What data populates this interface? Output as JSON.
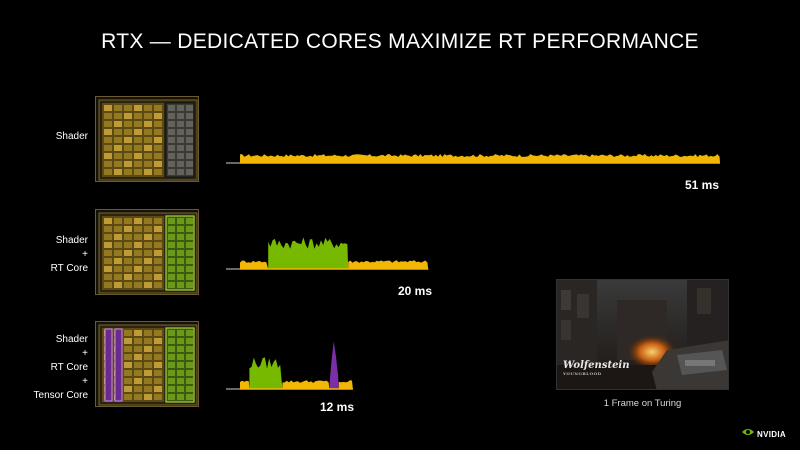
{
  "title": "RTX — DEDICATED CORES MAXIMIZE RT PERFORMANCE",
  "rows": [
    {
      "label_lines": [
        "Shader"
      ],
      "time_label": "51 ms"
    },
    {
      "label_lines": [
        "Shader",
        "+",
        "RT Core"
      ],
      "time_label": "20 ms"
    },
    {
      "label_lines": [
        "Shader",
        "+",
        "RT Core",
        "+",
        "Tensor Core"
      ],
      "time_label": "12 ms"
    }
  ],
  "screenshot": {
    "logo_text": "Wolfenstein",
    "logo_sub": "YOUNGBLOOD",
    "caption": "1 Frame on Turing"
  },
  "brand": "NVIDIA",
  "colors": {
    "shader": "#f2b705",
    "rt_core": "#76b900",
    "tensor_core": "#7a2fa8"
  },
  "chart_data": {
    "type": "area",
    "title": "RTX — DEDICATED CORES MAXIMIZE RT PERFORMANCE",
    "xlabel": "",
    "ylabel": "",
    "series": [
      {
        "name": "Shader",
        "frame_time_ms": 51,
        "segments": [
          {
            "unit": "Shader",
            "start_ms": 0,
            "end_ms": 51
          }
        ]
      },
      {
        "name": "Shader + RT Core",
        "frame_time_ms": 20,
        "segments": [
          {
            "unit": "Shader",
            "start_ms": 0,
            "end_ms": 3
          },
          {
            "unit": "RT Core",
            "start_ms": 3,
            "end_ms": 11.5
          },
          {
            "unit": "Shader",
            "start_ms": 11.5,
            "end_ms": 20
          }
        ]
      },
      {
        "name": "Shader + RT Core + Tensor Core",
        "frame_time_ms": 12,
        "segments": [
          {
            "unit": "Shader",
            "start_ms": 0,
            "end_ms": 1
          },
          {
            "unit": "RT Core",
            "start_ms": 1,
            "end_ms": 4.5
          },
          {
            "unit": "Shader",
            "start_ms": 4.5,
            "end_ms": 9.5
          },
          {
            "unit": "Tensor Core",
            "start_ms": 9.5,
            "end_ms": 10.5
          },
          {
            "unit": "Shader",
            "start_ms": 10.5,
            "end_ms": 12
          }
        ]
      }
    ]
  }
}
